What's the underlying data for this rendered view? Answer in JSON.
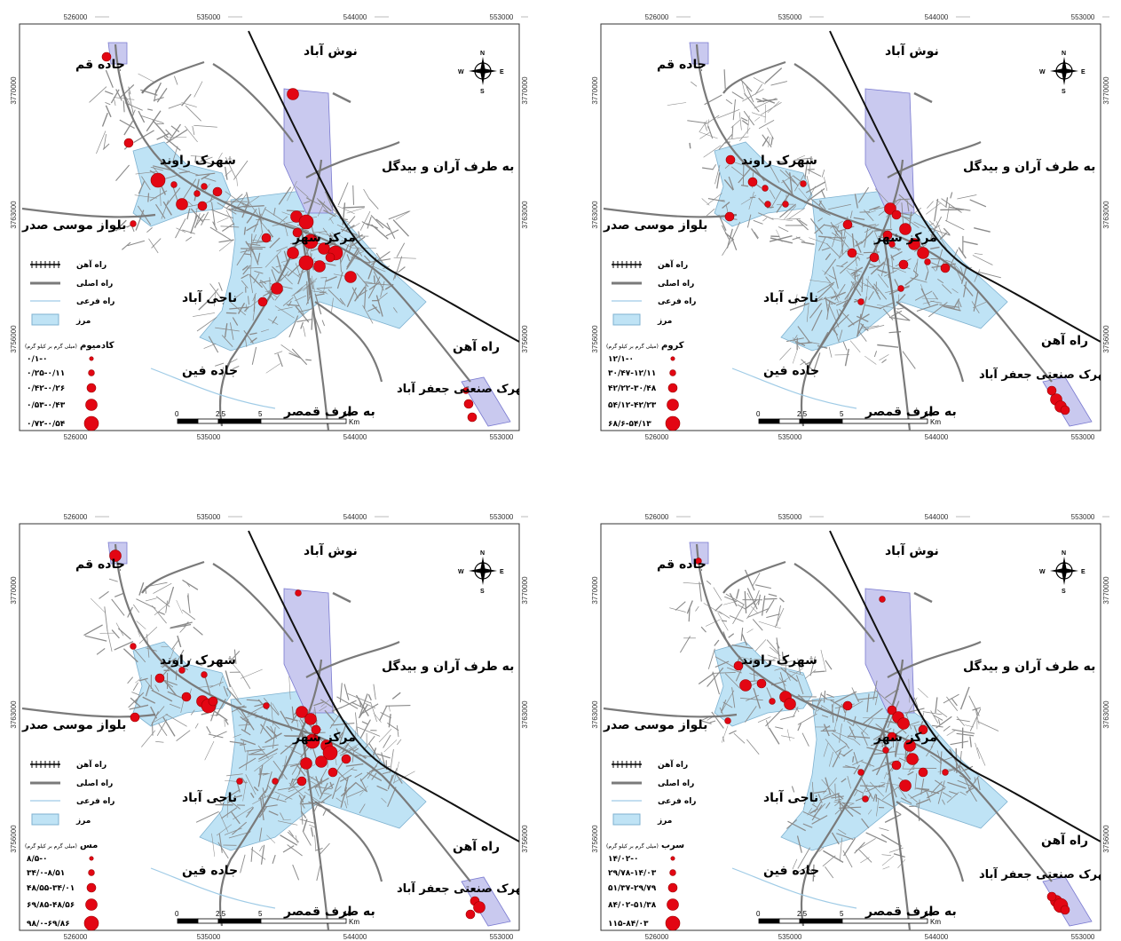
{
  "x_ticks": [
    "526000",
    "535000",
    "544000",
    "553000"
  ],
  "y_ticks": [
    "3770000",
    "3763000",
    "3756000"
  ],
  "compass": {
    "n": "N",
    "s": "S",
    "e": "E",
    "w": "W"
  },
  "scalebar": {
    "ticks": [
      "0",
      "2.5",
      "5",
      "10"
    ],
    "unit": "Km"
  },
  "places": {
    "qom": "جاده قم",
    "noushabad": "نوش آباد",
    "aran": "به طرف آران و بیدگل",
    "ravand": "شهرک راوند",
    "boulevard": "بلواز موسی صدر",
    "center": "مرکز شهر",
    "naji": "ناجی آباد",
    "railway": "راه آهن",
    "fin": "جاده فین",
    "jafarabad": "شهرک صنعتی جعفر آباد",
    "qamsar": "به طرف قمصر"
  },
  "legend_common": {
    "railway": "راه آهن",
    "main_road": "راه اصلی",
    "secondary_road": "راه فرعی",
    "boundary": "مرز",
    "unit": "(میلی گرم بر کیلو گرم)"
  },
  "colors": {
    "boundary_fill": "#bfe3f5",
    "industrial_fill": "#c9c9ef",
    "point": "#e30613",
    "roads": "#8a8a8a"
  },
  "maps": [
    {
      "element": "کادمیوم",
      "classes": [
        "۰/۱-۰",
        "۰/۲۵-۰/۱۱",
        "۰/۴۲-۰/۲۶",
        "۰/۵۳-۰/۴۳",
        "۰/۷۲-۰/۵۴"
      ]
    },
    {
      "element": "کروم",
      "classes": [
        "۱۲/۱-۰",
        "۳۰/۴۷-۱۲/۱۱",
        "۴۲/۲۲-۳۰/۴۸",
        "۵۴/۱۲-۴۲/۲۳",
        "۶۸/۶-۵۴/۱۳"
      ]
    },
    {
      "element": "مس",
      "classes": [
        "۸/۵-۰",
        "۳۴/۰-۸/۵۱",
        "۴۸/۵۵-۳۴/۰۱",
        "۶۹/۸۵-۴۸/۵۶",
        "۹۸/۰-۶۹/۸۶"
      ]
    },
    {
      "element": "سرب",
      "classes": [
        "۱۴/۰۲-۰",
        "۲۹/۷۸-۱۴/۰۳",
        "۵۱/۳۷-۲۹/۷۹",
        "۸۴/۰۲-۵۱/۳۸",
        "۱۱۵-۸۴/۰۳"
      ]
    }
  ]
}
